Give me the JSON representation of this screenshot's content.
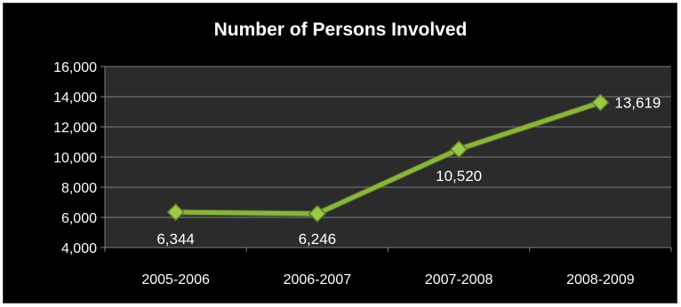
{
  "chart_data": {
    "type": "line",
    "title": "Number of Persons Involved",
    "xlabel": "",
    "ylabel": "",
    "categories": [
      "2005-2006",
      "2006-2007",
      "2007-2008",
      "2008-2009"
    ],
    "values": [
      6344,
      6246,
      10520,
      13619
    ],
    "data_labels": [
      "6,344",
      "6,246",
      "10,520",
      "13,619"
    ],
    "ylim": [
      4000,
      16000
    ],
    "yticks": [
      4000,
      6000,
      8000,
      10000,
      12000,
      14000,
      16000
    ],
    "ytick_labels": [
      "4,000",
      "6,000",
      "8,000",
      "10,000",
      "12,000",
      "14,000",
      "16,000"
    ],
    "grid": true,
    "legend": "none",
    "colors": {
      "background": "#000000",
      "plot_area": "#2b2b2b",
      "line": "#8ab43c",
      "marker": "#9bc94a",
      "text": "#ffffff",
      "grid": "#7f7f7f"
    }
  }
}
